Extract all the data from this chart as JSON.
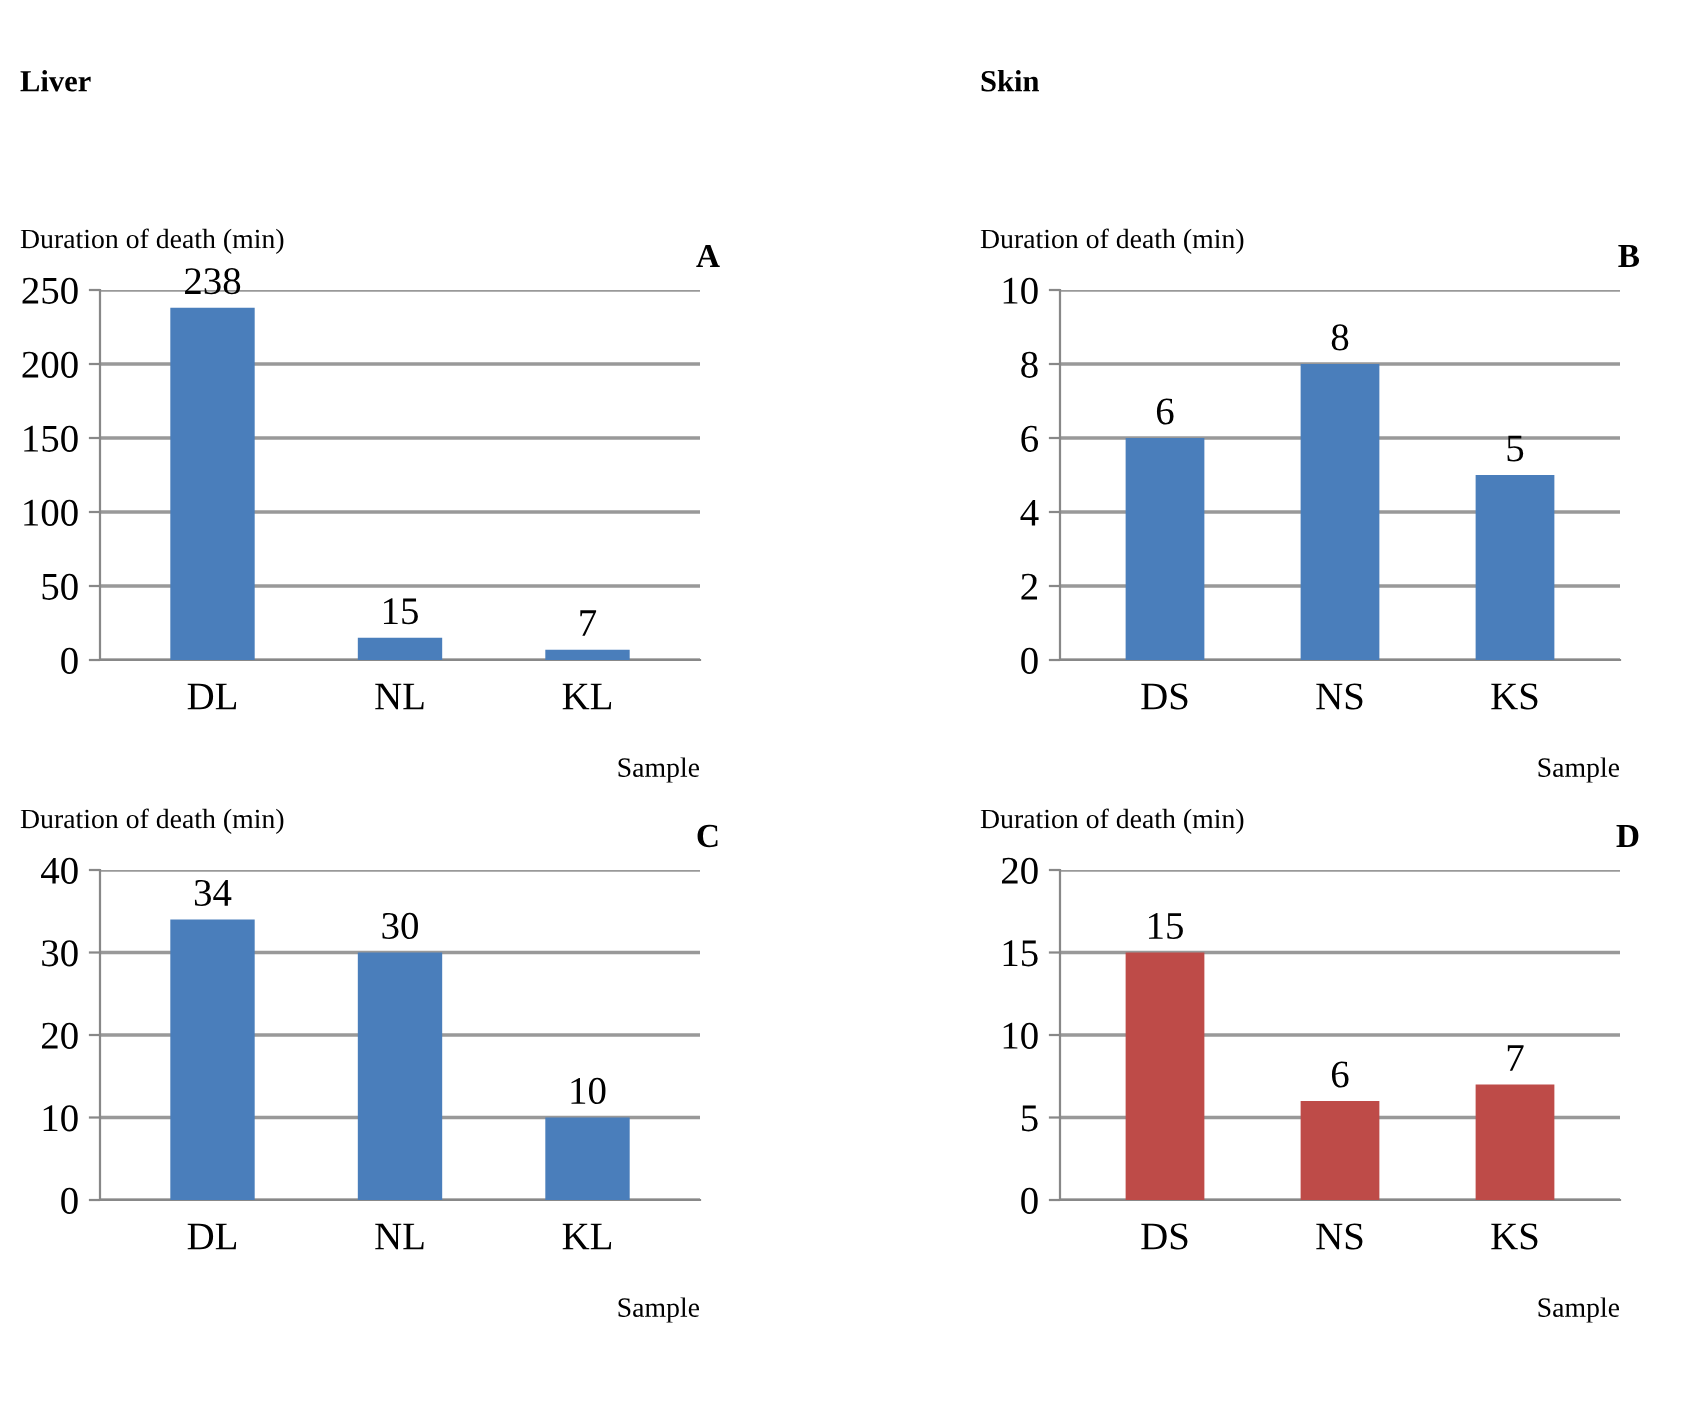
{
  "chart_data": [
    {
      "type": "bar",
      "title": "Liver",
      "ylabel": "Duration of death (min)",
      "xlabel": "Sample",
      "annotations": [
        "A"
      ],
      "categories": [
        "DL",
        "NL",
        "KL"
      ],
      "values": [
        238,
        15,
        7
      ],
      "color": "#4a7ebb",
      "ylim": [
        0,
        250
      ],
      "yticks": [
        0,
        50,
        100,
        150,
        200,
        250
      ],
      "grid": "y",
      "data_labels": true
    },
    {
      "type": "bar",
      "title": "Skin",
      "ylabel": "Duration of death (min)",
      "xlabel": "Sample",
      "annotations": [
        "B"
      ],
      "categories": [
        "DS",
        "NS",
        "KS"
      ],
      "values": [
        6,
        8,
        5
      ],
      "color": "#4a7ebb",
      "ylim": [
        0,
        10
      ],
      "yticks": [
        0,
        2,
        4,
        6,
        8,
        10
      ],
      "grid": "y",
      "data_labels": true
    },
    {
      "type": "bar",
      "ylabel": "Duration of death (min)",
      "xlabel": "Sample",
      "annotations": [
        "C"
      ],
      "categories": [
        "DL",
        "NL",
        "KL"
      ],
      "values": [
        34,
        30,
        10
      ],
      "color": "#4a7ebb",
      "ylim": [
        0,
        40
      ],
      "yticks": [
        0,
        10,
        20,
        30,
        40
      ],
      "grid": "y",
      "data_labels": true
    },
    {
      "type": "bar",
      "ylabel": "Duration of death (min)",
      "xlabel": "Sample",
      "annotations": [
        "D"
      ],
      "categories": [
        "DS",
        "NS",
        "KS"
      ],
      "values": [
        15,
        6,
        7
      ],
      "color": "#be4b48",
      "ylim": [
        0,
        20
      ],
      "yticks": [
        0,
        5,
        10,
        15,
        20
      ],
      "grid": "y",
      "data_labels": true
    }
  ]
}
